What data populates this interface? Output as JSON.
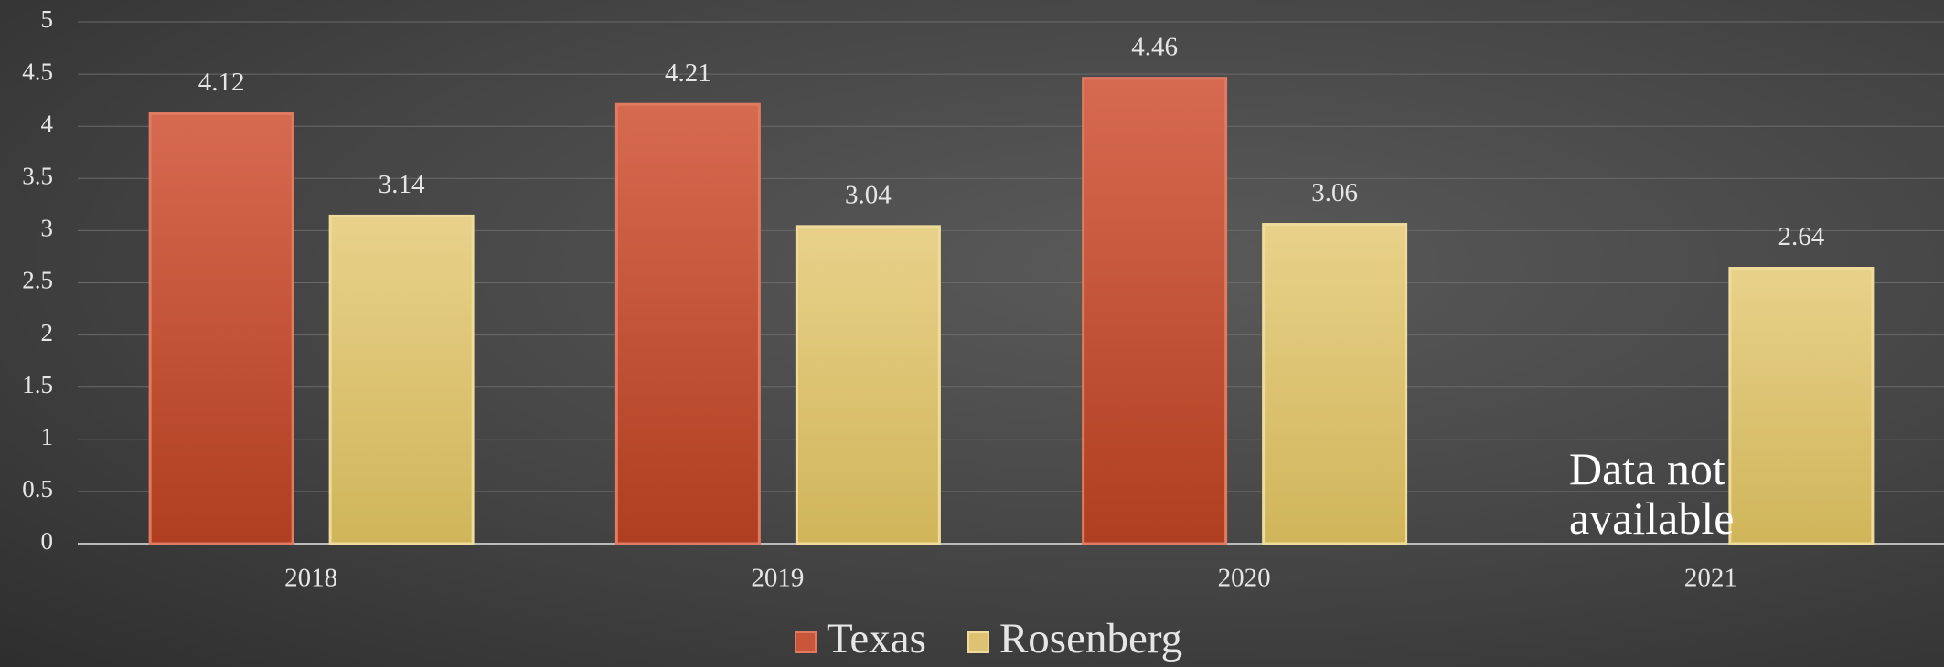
{
  "chart_data": {
    "type": "bar",
    "categories": [
      "2018",
      "2019",
      "2020",
      "2021"
    ],
    "series": [
      {
        "name": "Texas",
        "color": "#c9553a",
        "values": [
          4.12,
          4.21,
          4.46,
          null
        ]
      },
      {
        "name": "Rosenberg",
        "color": "#dcc272",
        "values": [
          3.14,
          3.04,
          3.06,
          2.64
        ]
      }
    ],
    "ylim": [
      0,
      5
    ],
    "yticks": [
      0,
      0.5,
      1,
      1.5,
      2,
      2.5,
      3,
      3.5,
      4,
      4.5,
      5
    ],
    "grid": true,
    "legend": "bottom",
    "annotation": "Data not available"
  }
}
